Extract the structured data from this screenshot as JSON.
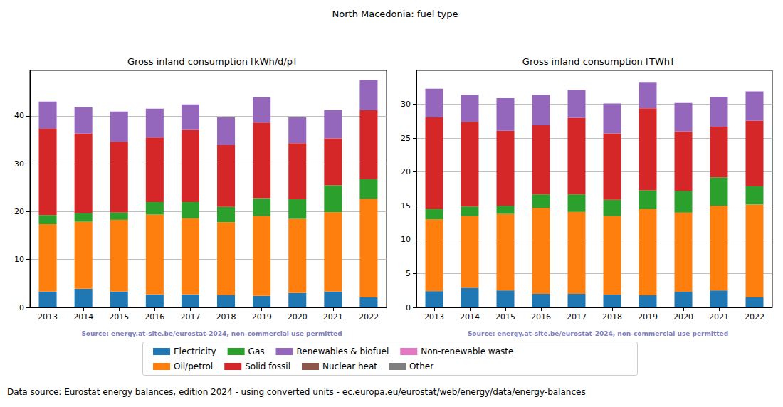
{
  "title": "North Macedonia: fuel type",
  "footnote": "Data source: Eurostat energy balances, edition 2024 - using converted units - ec.europa.eu/eurostat/web/energy/data/energy-balances",
  "chart_data": [
    {
      "type": "bar",
      "title": "Gross inland consumption [kWh/d/p]",
      "annotations": [
        "Source: energy.at-site.be/eurostat-2024, non-commercial use permitted"
      ],
      "stacked": true,
      "grid": true,
      "legend": "bottom",
      "categories": [
        "2013",
        "2014",
        "2015",
        "2016",
        "2017",
        "2018",
        "2019",
        "2020",
        "2021",
        "2022"
      ],
      "ylim": [
        0,
        49.5
      ],
      "yticks": [
        0,
        10,
        20,
        30,
        40
      ],
      "series": [
        {
          "name": "Electricity",
          "color": "#1f77b4",
          "values": [
            3.3,
            3.9,
            3.3,
            2.7,
            2.7,
            2.6,
            2.4,
            3.0,
            3.3,
            2.1
          ]
        },
        {
          "name": "Oil/petrol",
          "color": "#ff7f0e",
          "values": [
            14.1,
            14.0,
            15.0,
            16.7,
            15.9,
            15.2,
            16.7,
            15.5,
            16.6,
            20.6
          ]
        },
        {
          "name": "Gas",
          "color": "#2ca02c",
          "values": [
            1.9,
            1.8,
            1.5,
            2.6,
            3.4,
            3.2,
            3.7,
            4.1,
            5.6,
            4.1
          ]
        },
        {
          "name": "Solid fossil",
          "color": "#d62728",
          "values": [
            18.0,
            16.6,
            14.8,
            13.5,
            15.1,
            12.9,
            15.8,
            11.7,
            9.8,
            14.4
          ]
        },
        {
          "name": "Renewables & biofuel",
          "color": "#9467bd",
          "values": [
            5.7,
            5.5,
            6.3,
            6.0,
            5.3,
            5.8,
            5.3,
            5.4,
            5.9,
            6.3
          ]
        },
        {
          "name": "Nuclear heat",
          "color": "#8c564b",
          "values": [
            0,
            0,
            0,
            0,
            0,
            0,
            0,
            0,
            0,
            0
          ]
        },
        {
          "name": "Non-renewable waste",
          "color": "#e377c2",
          "values": [
            0,
            0,
            0,
            0,
            0,
            0,
            0,
            0,
            0,
            0
          ]
        },
        {
          "name": "Other",
          "color": "#7f7f7f",
          "values": [
            0,
            0,
            0,
            0,
            0,
            0,
            0,
            0,
            0,
            0
          ]
        }
      ]
    },
    {
      "type": "bar",
      "title": "Gross inland consumption [TWh]",
      "annotations": [
        "Source: energy.at-site.be/eurostat-2024, non-commercial use permitted"
      ],
      "stacked": true,
      "grid": true,
      "legend": "bottom",
      "categories": [
        "2013",
        "2014",
        "2015",
        "2016",
        "2017",
        "2018",
        "2019",
        "2020",
        "2021",
        "2022"
      ],
      "ylim": [
        0,
        35
      ],
      "yticks": [
        0,
        5,
        10,
        15,
        20,
        25,
        30
      ],
      "series": [
        {
          "name": "Electricity",
          "color": "#1f77b4",
          "values": [
            2.4,
            2.9,
            2.5,
            2.0,
            2.0,
            1.9,
            1.8,
            2.3,
            2.5,
            1.5
          ]
        },
        {
          "name": "Oil/petrol",
          "color": "#ff7f0e",
          "values": [
            10.6,
            10.6,
            11.3,
            12.7,
            12.1,
            11.6,
            12.7,
            11.7,
            12.5,
            13.7
          ]
        },
        {
          "name": "Gas",
          "color": "#2ca02c",
          "values": [
            1.5,
            1.4,
            1.2,
            2.0,
            2.6,
            2.4,
            2.8,
            3.2,
            4.2,
            2.7
          ]
        },
        {
          "name": "Solid fossil",
          "color": "#d62728",
          "values": [
            13.6,
            12.5,
            11.1,
            10.2,
            11.3,
            9.8,
            12.1,
            8.8,
            7.5,
            9.7
          ]
        },
        {
          "name": "Renewables & biofuel",
          "color": "#9467bd",
          "values": [
            4.2,
            4.0,
            4.8,
            4.5,
            4.1,
            4.4,
            3.9,
            4.2,
            4.4,
            4.3
          ]
        },
        {
          "name": "Nuclear heat",
          "color": "#8c564b",
          "values": [
            0,
            0,
            0,
            0,
            0,
            0,
            0,
            0,
            0,
            0
          ]
        },
        {
          "name": "Non-renewable waste",
          "color": "#e377c2",
          "values": [
            0,
            0,
            0,
            0,
            0,
            0,
            0,
            0,
            0,
            0
          ]
        },
        {
          "name": "Other",
          "color": "#7f7f7f",
          "values": [
            0,
            0,
            0,
            0,
            0,
            0,
            0,
            0,
            0,
            0
          ]
        }
      ]
    }
  ]
}
